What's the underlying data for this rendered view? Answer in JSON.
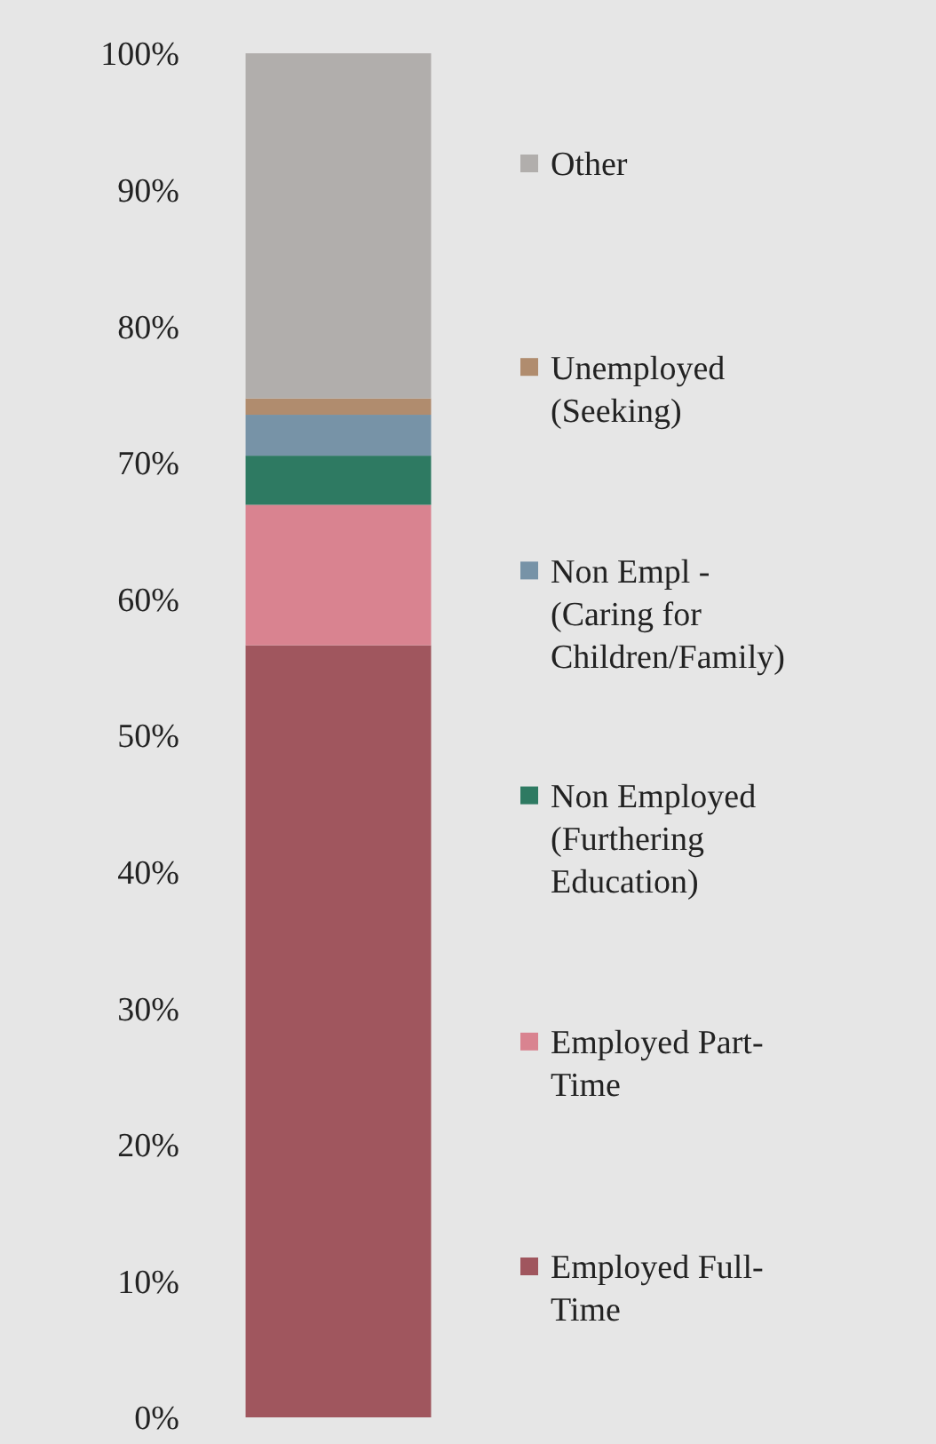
{
  "chart_data": {
    "type": "bar",
    "stacked": true,
    "categories": [
      null
    ],
    "series": [
      {
        "name": "Employed Full-Time",
        "color": "#a0565e",
        "values": [
          56.6
        ]
      },
      {
        "name": "Employed Part-Time",
        "color": "#d98390",
        "values": [
          10.3
        ]
      },
      {
        "name": "Non Employed (Furthering Education)",
        "color": "#2e7a62",
        "values": [
          3.6
        ]
      },
      {
        "name": "Non Empl - (Caring for Children/Family)",
        "color": "#7793a7",
        "values": [
          3.0
        ]
      },
      {
        "name": "Unemployed (Seeking)",
        "color": "#b08c6e",
        "values": [
          1.2
        ]
      },
      {
        "name": "Other",
        "color": "#b1aeac",
        "values": [
          25.3
        ]
      }
    ],
    "ylim": [
      0,
      100
    ],
    "yticks": [
      {
        "value": 0,
        "label": "0%"
      },
      {
        "value": 10,
        "label": "10%"
      },
      {
        "value": 20,
        "label": "20%"
      },
      {
        "value": 30,
        "label": "30%"
      },
      {
        "value": 40,
        "label": "40%"
      },
      {
        "value": 50,
        "label": "50%"
      },
      {
        "value": 60,
        "label": "60%"
      },
      {
        "value": 70,
        "label": "70%"
      },
      {
        "value": 80,
        "label": "80%"
      },
      {
        "value": 90,
        "label": "90%"
      },
      {
        "value": 100,
        "label": "100%"
      }
    ],
    "legend": "right",
    "grid": false
  }
}
